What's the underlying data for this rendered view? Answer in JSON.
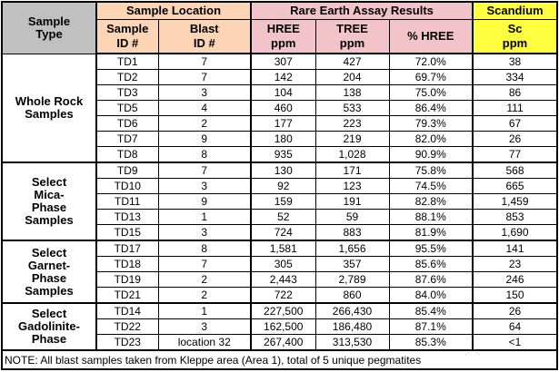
{
  "header": {
    "sample_type": "Sample Type",
    "sample_location": "Sample Location",
    "assay_results": "Rare Earth Assay Results",
    "scandium": "Scandium",
    "sample_id": "Sample ID #",
    "blast_id": "Blast ID #",
    "hree": "HREE ppm",
    "tree": "TREE ppm",
    "pct_hree": "% HREE",
    "sc": "Sc ppm"
  },
  "groups": [
    {
      "label": "Whole Rock Samples",
      "rows": [
        {
          "id": "TD1",
          "blast": "7",
          "hree": "307",
          "tree": "427",
          "pct": "72.0%",
          "sc": "38"
        },
        {
          "id": "TD2",
          "blast": "7",
          "hree": "142",
          "tree": "204",
          "pct": "69.7%",
          "sc": "334"
        },
        {
          "id": "TD3",
          "blast": "3",
          "hree": "104",
          "tree": "138",
          "pct": "75.0%",
          "sc": "86"
        },
        {
          "id": "TD5",
          "blast": "4",
          "hree": "460",
          "tree": "533",
          "pct": "86.4%",
          "sc": "111"
        },
        {
          "id": "TD6",
          "blast": "2",
          "hree": "177",
          "tree": "223",
          "pct": "79.3%",
          "sc": "67"
        },
        {
          "id": "TD7",
          "blast": "9",
          "hree": "180",
          "tree": "219",
          "pct": "82.0%",
          "sc": "26"
        },
        {
          "id": "TD8",
          "blast": "8",
          "hree": "935",
          "tree": "1,028",
          "pct": "90.9%",
          "sc": "77"
        }
      ]
    },
    {
      "label": "Select Mica-Phase Samples",
      "rows": [
        {
          "id": "TD9",
          "blast": "7",
          "hree": "130",
          "tree": "171",
          "pct": "75.8%",
          "sc": "568"
        },
        {
          "id": "TD10",
          "blast": "3",
          "hree": "92",
          "tree": "123",
          "pct": "74.5%",
          "sc": "665"
        },
        {
          "id": "TD11",
          "blast": "9",
          "hree": "159",
          "tree": "191",
          "pct": "82.8%",
          "sc": "1,459"
        },
        {
          "id": "TD13",
          "blast": "1",
          "hree": "52",
          "tree": "59",
          "pct": "88.1%",
          "sc": "853"
        },
        {
          "id": "TD15",
          "blast": "3",
          "hree": "724",
          "tree": "883",
          "pct": "81.9%",
          "sc": "1,690"
        }
      ]
    },
    {
      "label": "Select Garnet-Phase Samples",
      "rows": [
        {
          "id": "TD17",
          "blast": "8",
          "hree": "1,581",
          "tree": "1,656",
          "pct": "95.5%",
          "sc": "141"
        },
        {
          "id": "TD18",
          "blast": "7",
          "hree": "305",
          "tree": "357",
          "pct": "85.6%",
          "sc": "23"
        },
        {
          "id": "TD19",
          "blast": "2",
          "hree": "2,443",
          "tree": "2,789",
          "pct": "87.6%",
          "sc": "246"
        },
        {
          "id": "TD21",
          "blast": "2",
          "hree": "722",
          "tree": "860",
          "pct": "84.0%",
          "sc": "150"
        }
      ]
    },
    {
      "label": "Select Gadolinite-Phase",
      "rows": [
        {
          "id": "TD14",
          "blast": "1",
          "hree": "227,500",
          "tree": "266,430",
          "pct": "85.4%",
          "sc": "26"
        },
        {
          "id": "TD22",
          "blast": "3",
          "hree": "162,500",
          "tree": "186,480",
          "pct": "87.1%",
          "sc": "64"
        },
        {
          "id": "TD23",
          "blast": "location 32",
          "hree": "267,400",
          "tree": "313,530",
          "pct": "85.3%",
          "sc": "<1"
        }
      ]
    }
  ],
  "note": "NOTE:  All blast samples taken from Kleppe area (Area 1), total of 5 unique pegmatites",
  "colors": {
    "sample_type_bg": "#c0c0c0",
    "sample_location_bg": "#fbd5b5",
    "assay_bg": "#f2c3c9",
    "scandium_bg": "#ffff40"
  }
}
